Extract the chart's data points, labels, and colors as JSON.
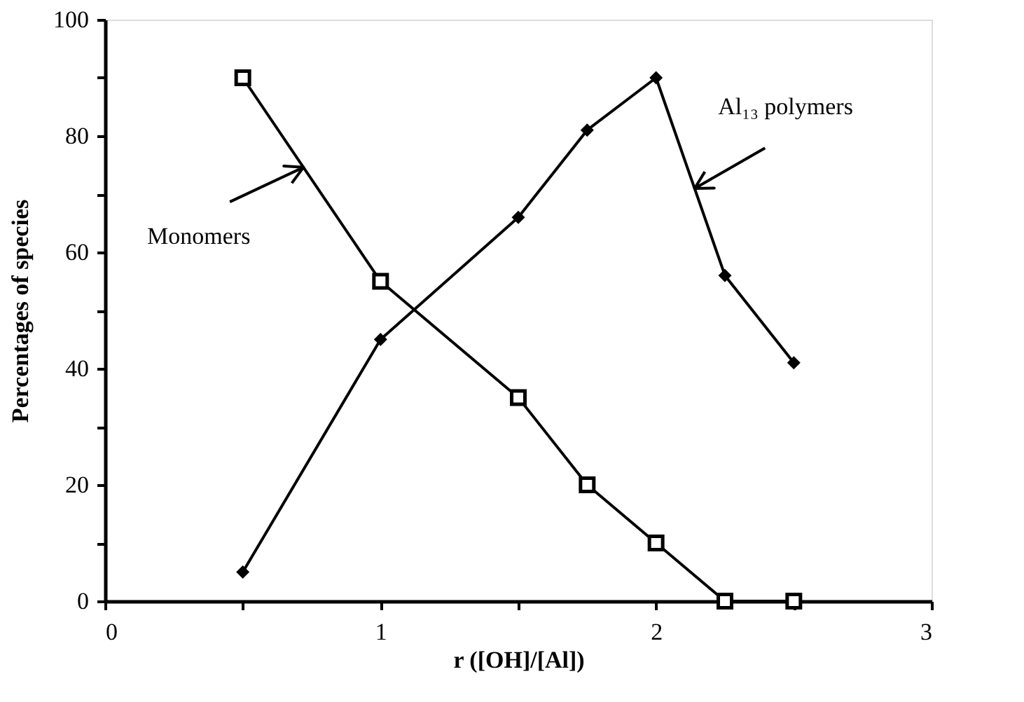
{
  "chart_data": {
    "type": "line",
    "xlabel": "r ([OH]/[Al])",
    "ylabel": "Percentages of species",
    "x": [
      0.5,
      1,
      1.5,
      1.75,
      2,
      2.25,
      2.5
    ],
    "series": [
      {
        "name": "Monomers",
        "color": "#000000",
        "marker": "square",
        "values": [
          90,
          55,
          35,
          20,
          10,
          0,
          0
        ]
      },
      {
        "name": "Al₁₃ polymers",
        "color": "#000000",
        "marker": "diamond",
        "values": [
          5,
          45,
          66,
          81,
          90,
          56,
          41
        ]
      }
    ],
    "xlim": [
      0,
      3
    ],
    "xticks": [
      0,
      {
        "value": 0.5,
        "label": null
      },
      1,
      {
        "value": 1.5,
        "label": null
      },
      2,
      {
        "value": 2.5,
        "label": null
      },
      3
    ],
    "ylim": [
      0,
      100
    ],
    "yticks": [
      0,
      {
        "value": 10,
        "label": null
      },
      20,
      {
        "value": 30,
        "label": null
      },
      40,
      {
        "value": 50,
        "label": null
      },
      60,
      {
        "value": 70,
        "label": null
      },
      80,
      {
        "value": 90,
        "label": null
      },
      100
    ],
    "grid": false,
    "line_style": "solid"
  }
}
